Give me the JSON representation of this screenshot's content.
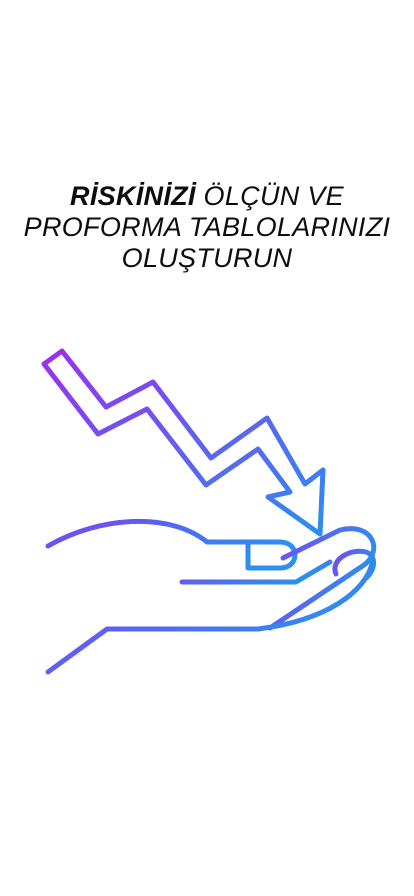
{
  "headline": {
    "word1": "RİSKİNİZİ",
    "word2": "ÖLÇÜN VE",
    "line2": "PROFORMA TABLOLARINIZI",
    "line3": "OLUŞTURUN"
  },
  "illustration": {
    "icon": "hand-with-falling-arrow-icon",
    "gradient_start": "#9b2ff0",
    "gradient_end": "#2b8ef0"
  }
}
